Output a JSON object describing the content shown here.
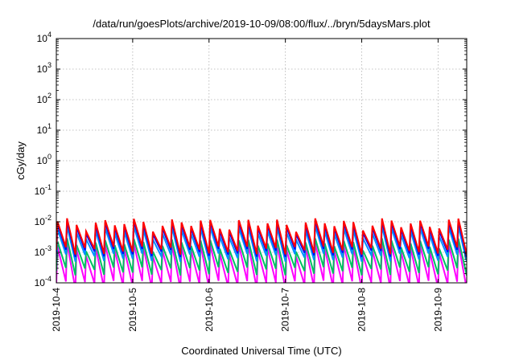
{
  "chart_data": {
    "type": "line",
    "title": "/data/run/goesPlots/archive/2019-10-09/08:00/flux/../bryn/5daysMars.plot",
    "xlabel": "Coordinated Universal Time (UTC)",
    "ylabel": "cGy/day",
    "yscale": "log",
    "ylim": [
      0.0001,
      10000
    ],
    "xlim": [
      "2019-10-04",
      "2019-10-09T09:00"
    ],
    "grid": true,
    "x_ticks": [
      "2019-10-4",
      "2019-10-5",
      "2019-10-6",
      "2019-10-7",
      "2019-10-8",
      "2019-10-9"
    ],
    "y_ticks": [
      {
        "base": "10",
        "exp": "-4"
      },
      {
        "base": "10",
        "exp": "-3"
      },
      {
        "base": "10",
        "exp": "-2"
      },
      {
        "base": "10",
        "exp": "-1"
      },
      {
        "base": "10",
        "exp": "0"
      },
      {
        "base": "10",
        "exp": "1"
      },
      {
        "base": "10",
        "exp": "2"
      },
      {
        "base": "10",
        "exp": "3"
      },
      {
        "base": "10",
        "exp": "4"
      }
    ],
    "pattern": {
      "cycle_hours": 3,
      "sawtooth": "sharp rise at start of each cycle, gradual decay until next rise"
    },
    "series": [
      {
        "color": "#ff0000",
        "peak": 0.009,
        "trough": 0.0012
      },
      {
        "color": "#0000ff",
        "peak": 0.0075,
        "trough": 0.001
      },
      {
        "color": "#0090ff",
        "peak": 0.005,
        "trough": 0.0007
      },
      {
        "color": "#00c060",
        "peak": 0.002,
        "trough": 0.00025
      },
      {
        "color": "#ff00ff",
        "peak": 0.0014,
        "trough": 9e-05
      }
    ]
  }
}
